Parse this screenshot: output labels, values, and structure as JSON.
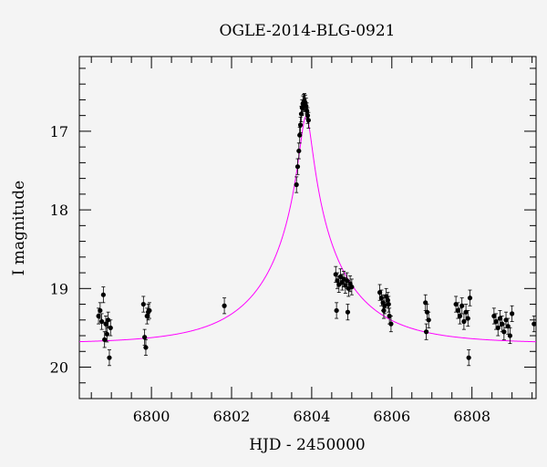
{
  "chart_data": {
    "type": "scatter",
    "title": "OGLE-2014-BLG-0921",
    "xlabel": "HJD - 2450000",
    "ylabel": "I magnitude",
    "xlim": [
      6798.2,
      6809.6
    ],
    "ylim": [
      20.4,
      16.05
    ],
    "y_inverted": true,
    "x_major_ticks": [
      6800,
      6802,
      6804,
      6806,
      6808
    ],
    "x_tick_labels": [
      "6800",
      "6802",
      "6804",
      "6806",
      "6808"
    ],
    "y_major_ticks": [
      17,
      18,
      19,
      20
    ],
    "y_tick_labels": [
      "17",
      "18",
      "19",
      "20"
    ],
    "model_color": "#ff00ff",
    "point_color": "#000000",
    "model": {
      "baseline_mag": 19.7,
      "t0": 6803.86,
      "u0": 0.07,
      "tE": 2.05
    },
    "series": [
      {
        "kind": "points",
        "x": [
          6798.68,
          6798.72,
          6798.76,
          6798.8,
          6798.83,
          6798.86,
          6798.89,
          6798.92,
          6798.95,
          6798.98,
          6799.8,
          6799.83,
          6799.86,
          6799.89,
          6799.92,
          6799.95,
          6801.82,
          6803.62,
          6803.65,
          6803.68,
          6803.7,
          6803.72,
          6803.74,
          6803.76,
          6803.78,
          6803.8,
          6803.82,
          6803.84,
          6803.86,
          6803.88,
          6803.9,
          6803.92,
          6804.6,
          6804.64,
          6804.68,
          6804.72,
          6804.76,
          6804.8,
          6804.84,
          6804.88,
          6804.92,
          6804.96,
          6805.0,
          6804.62,
          6804.9,
          6805.7,
          6805.74,
          6805.78,
          6805.82,
          6805.86,
          6805.9,
          6805.94,
          6805.98,
          6805.8,
          6805.92,
          6806.84,
          6806.88,
          6806.92,
          6806.86,
          6807.6,
          6807.65,
          6807.7,
          6807.75,
          6807.8,
          6807.85,
          6807.9,
          6807.95,
          6807.92,
          6808.55,
          6808.6,
          6808.65,
          6808.7,
          6808.75,
          6808.8,
          6808.85,
          6808.9,
          6808.95,
          6809.0,
          6809.55
        ],
        "y": [
          19.35,
          19.28,
          19.42,
          19.08,
          19.65,
          19.45,
          19.58,
          19.4,
          19.88,
          19.5,
          19.2,
          19.62,
          19.75,
          19.35,
          19.3,
          19.28,
          19.22,
          17.68,
          17.45,
          17.25,
          17.05,
          16.92,
          16.78,
          16.7,
          16.65,
          16.63,
          16.62,
          16.64,
          16.68,
          16.74,
          16.8,
          16.86,
          18.82,
          18.9,
          18.95,
          18.85,
          18.92,
          18.88,
          18.96,
          18.9,
          19.0,
          18.94,
          18.98,
          19.28,
          19.3,
          19.05,
          19.12,
          19.18,
          19.22,
          19.1,
          19.15,
          19.35,
          19.45,
          19.28,
          19.2,
          19.18,
          19.3,
          19.4,
          19.55,
          19.2,
          19.28,
          19.35,
          19.22,
          19.42,
          19.3,
          19.38,
          19.12,
          19.88,
          19.35,
          19.42,
          19.5,
          19.38,
          19.45,
          19.55,
          19.4,
          19.48,
          19.6,
          19.32,
          19.45
        ],
        "yerr": 0.1
      }
    ]
  }
}
